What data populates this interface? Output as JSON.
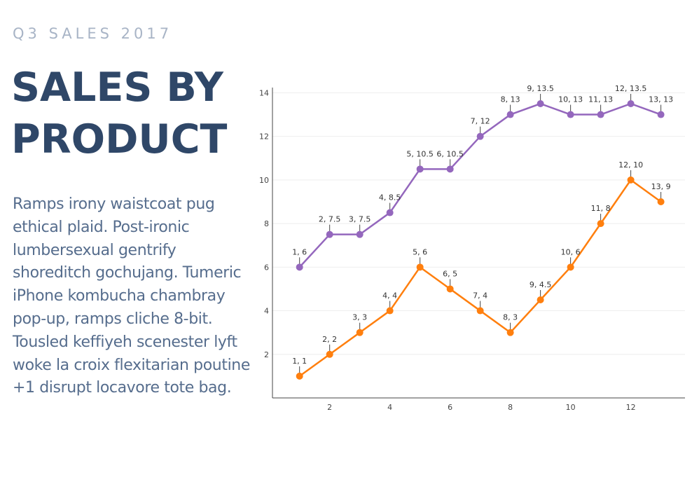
{
  "header": {
    "kicker": "Q3 SALES 2017",
    "title_line1": "SALES BY",
    "title_line2": "PRODUCT"
  },
  "description": "Ramps irony waistcoat pug ethical plaid. Post-ironic lumbersexual gentrify shoreditch gochujang. Tumeric iPhone kombucha chambray pop-up, ramps cliche 8-bit. Tousled keffiyeh scenester lyft woke la croix flexitarian poutine +1 disrupt locavore tote bag.",
  "colors": {
    "title": "#2f4768",
    "kicker": "#a8b4c6",
    "text": "#566d8d",
    "series_purple": "#9467bd",
    "series_orange": "#ff7f0e"
  },
  "chart_data": {
    "type": "line",
    "title": "",
    "xlabel": "",
    "ylabel": "",
    "xlim": [
      0.1,
      13.8
    ],
    "ylim": [
      0,
      14.4
    ],
    "x_ticks": [
      2,
      4,
      6,
      8,
      10,
      12
    ],
    "y_ticks": [
      2,
      4,
      6,
      8,
      10,
      12,
      14
    ],
    "grid": "horizontal",
    "legend": "none",
    "series": [
      {
        "color": "#9467bd",
        "x": [
          1,
          2,
          3,
          4,
          5,
          6,
          7,
          8,
          9,
          10,
          11,
          12,
          13
        ],
        "y": [
          6,
          7.5,
          7.5,
          8.5,
          10.5,
          10.5,
          12,
          13,
          13.5,
          13,
          13,
          13.5,
          13
        ],
        "labels": [
          "1, 6",
          "2, 7.5",
          "3, 7.5",
          "4, 8.5",
          "5, 10.5",
          "6, 10.5",
          "7, 12",
          "8, 13",
          "9, 13.5",
          "10, 13",
          "11, 13",
          "12, 13.5",
          "13, 13"
        ]
      },
      {
        "color": "#ff7f0e",
        "x": [
          1,
          2,
          3,
          4,
          5,
          6,
          7,
          8,
          9,
          10,
          11,
          12,
          13
        ],
        "y": [
          1,
          2,
          3,
          4,
          6,
          5,
          4,
          3,
          4.5,
          6,
          8,
          10,
          9
        ],
        "labels": [
          "1, 1",
          "2, 2",
          "3, 3",
          "4, 4",
          "5, 6",
          "6, 5",
          "7, 4",
          "8, 3",
          "9, 4.5",
          "10, 6",
          "11, 8",
          "12, 10",
          "13, 9"
        ]
      }
    ]
  }
}
